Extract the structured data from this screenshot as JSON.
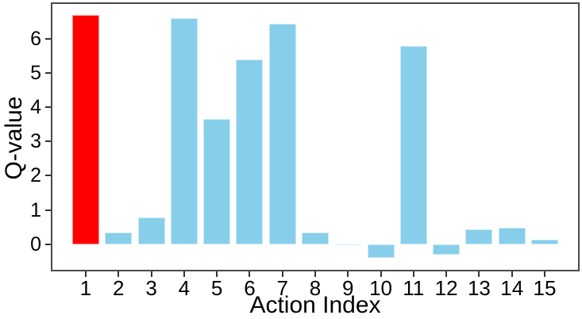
{
  "chart_data": {
    "type": "bar",
    "title": "",
    "xlabel": "Action Index",
    "ylabel": "Q-value",
    "categories": [
      "1",
      "2",
      "3",
      "4",
      "5",
      "6",
      "7",
      "8",
      "9",
      "10",
      "11",
      "12",
      "13",
      "14",
      "15"
    ],
    "values": [
      6.7,
      0.35,
      0.78,
      6.6,
      3.65,
      5.4,
      6.45,
      0.34,
      -0.02,
      -0.4,
      5.8,
      -0.32,
      0.44,
      0.47,
      0.14
    ],
    "highlighted_category": "1",
    "faint_categories": [
      "9"
    ],
    "yticks": [
      "0",
      "1",
      "2",
      "3",
      "4",
      "5",
      "6"
    ],
    "ylim": [
      -0.75,
      7.02
    ],
    "grid": false,
    "legend": null,
    "colors": {
      "bar": "#87CEEB",
      "highlight": "#FF0000",
      "spine": "#4a4a4a",
      "tick": "#333333",
      "text": "#000000",
      "background": "#ffffff"
    }
  }
}
